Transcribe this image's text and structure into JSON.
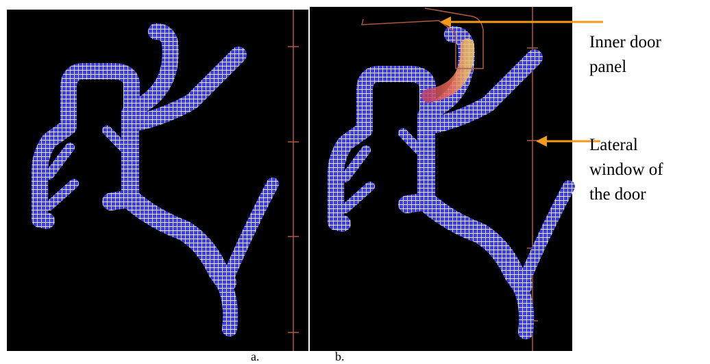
{
  "figure": {
    "panels": [
      {
        "label": "a."
      },
      {
        "label": "b."
      }
    ],
    "annotations": [
      {
        "lines": [
          "Inner door",
          "panel"
        ]
      },
      {
        "lines": [
          "Lateral",
          "window of",
          "the door"
        ]
      }
    ]
  }
}
